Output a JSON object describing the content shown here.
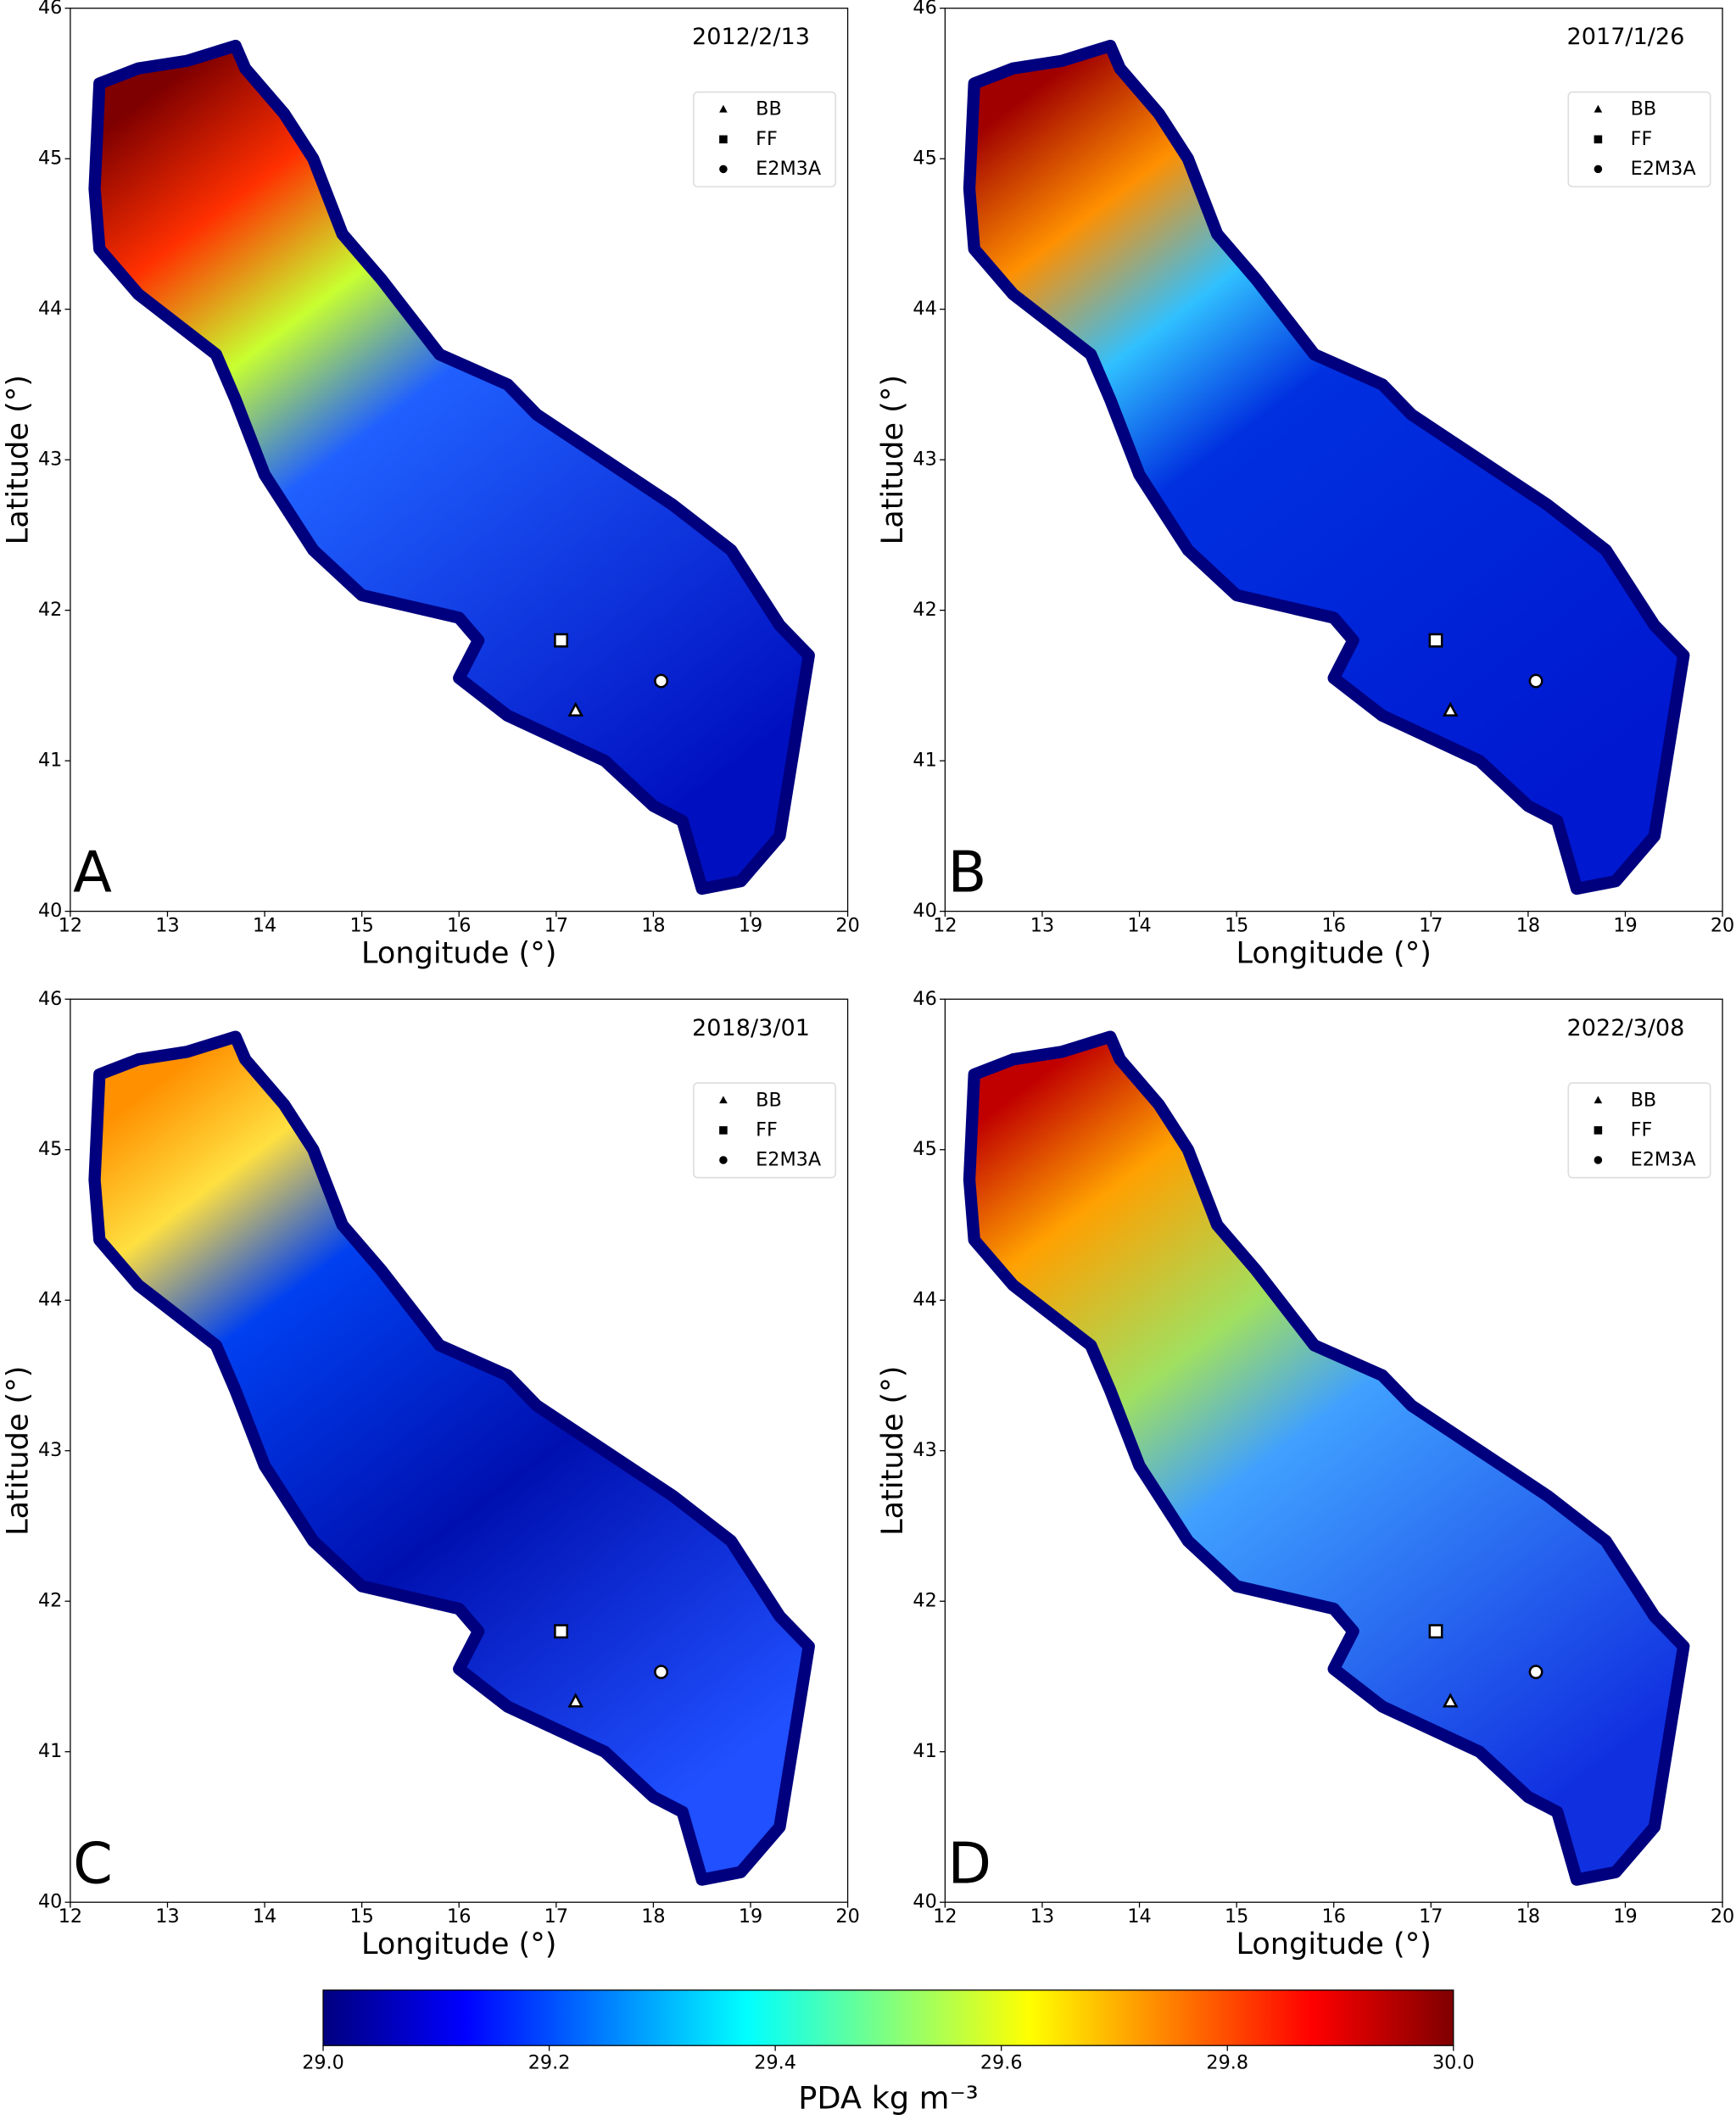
{
  "chart_data": [
    {
      "type": "map",
      "panel": "A",
      "title": "2012/2/13",
      "xlabel": "Longitude (°)",
      "ylabel": "Latitude (°)",
      "xlim": [
        12,
        20
      ],
      "ylim": [
        40,
        46
      ],
      "xticks": [
        12,
        13,
        14,
        15,
        16,
        17,
        18,
        19,
        20
      ],
      "yticks": [
        40,
        41,
        42,
        43,
        44,
        45,
        46
      ],
      "series": [
        {
          "name": "BB",
          "marker": "triangle",
          "x": [
            17.2
          ],
          "y": [
            41.33
          ]
        },
        {
          "name": "FF",
          "marker": "square",
          "x": [
            17.05
          ],
          "y": [
            41.8
          ]
        },
        {
          "name": "E2M3A",
          "marker": "circle",
          "x": [
            18.08
          ],
          "y": [
            41.53
          ]
        }
      ]
    },
    {
      "type": "map",
      "panel": "B",
      "title": "2017/1/26",
      "xlabel": "Longitude (°)",
      "ylabel": "Latitude (°)",
      "xlim": [
        12,
        20
      ],
      "ylim": [
        40,
        46
      ],
      "xticks": [
        12,
        13,
        14,
        15,
        16,
        17,
        18,
        19,
        20
      ],
      "yticks": [
        40,
        41,
        42,
        43,
        44,
        45,
        46
      ],
      "series": [
        {
          "name": "BB",
          "marker": "triangle",
          "x": [
            17.2
          ],
          "y": [
            41.33
          ]
        },
        {
          "name": "FF",
          "marker": "square",
          "x": [
            17.05
          ],
          "y": [
            41.8
          ]
        },
        {
          "name": "E2M3A",
          "marker": "circle",
          "x": [
            18.08
          ],
          "y": [
            41.53
          ]
        }
      ]
    },
    {
      "type": "map",
      "panel": "C",
      "title": "2018/3/01",
      "xlabel": "Longitude (°)",
      "ylabel": "Latitude (°)",
      "xlim": [
        12,
        20
      ],
      "ylim": [
        40,
        46
      ],
      "xticks": [
        12,
        13,
        14,
        15,
        16,
        17,
        18,
        19,
        20
      ],
      "yticks": [
        40,
        41,
        42,
        43,
        44,
        45,
        46
      ],
      "series": [
        {
          "name": "BB",
          "marker": "triangle",
          "x": [
            17.2
          ],
          "y": [
            41.33
          ]
        },
        {
          "name": "FF",
          "marker": "square",
          "x": [
            17.05
          ],
          "y": [
            41.8
          ]
        },
        {
          "name": "E2M3A",
          "marker": "circle",
          "x": [
            18.08
          ],
          "y": [
            41.53
          ]
        }
      ]
    },
    {
      "type": "map",
      "panel": "D",
      "title": "2022/3/08",
      "xlabel": "Longitude (°)",
      "ylabel": "Latitude (°)",
      "xlim": [
        12,
        20
      ],
      "ylim": [
        40,
        46
      ],
      "xticks": [
        12,
        13,
        14,
        15,
        16,
        17,
        18,
        19,
        20
      ],
      "yticks": [
        40,
        41,
        42,
        43,
        44,
        45,
        46
      ],
      "series": [
        {
          "name": "BB",
          "marker": "triangle",
          "x": [
            17.2
          ],
          "y": [
            41.33
          ]
        },
        {
          "name": "FF",
          "marker": "square",
          "x": [
            17.05
          ],
          "y": [
            41.8
          ]
        },
        {
          "name": "E2M3A",
          "marker": "circle",
          "x": [
            18.08
          ],
          "y": [
            41.53
          ]
        }
      ]
    }
  ],
  "colorbar": {
    "label": "PDA kg m⁻³",
    "colormap": "jet",
    "lim": [
      29.0,
      30.0
    ],
    "ticks": [
      {
        "value": 29.0,
        "label": "29.0"
      },
      {
        "value": 29.2,
        "label": "29.2"
      },
      {
        "value": 29.4,
        "label": "29.4"
      },
      {
        "value": 29.6,
        "label": "29.6"
      },
      {
        "value": 29.8,
        "label": "29.8"
      },
      {
        "value": 30.0,
        "label": "30.0"
      }
    ]
  }
}
